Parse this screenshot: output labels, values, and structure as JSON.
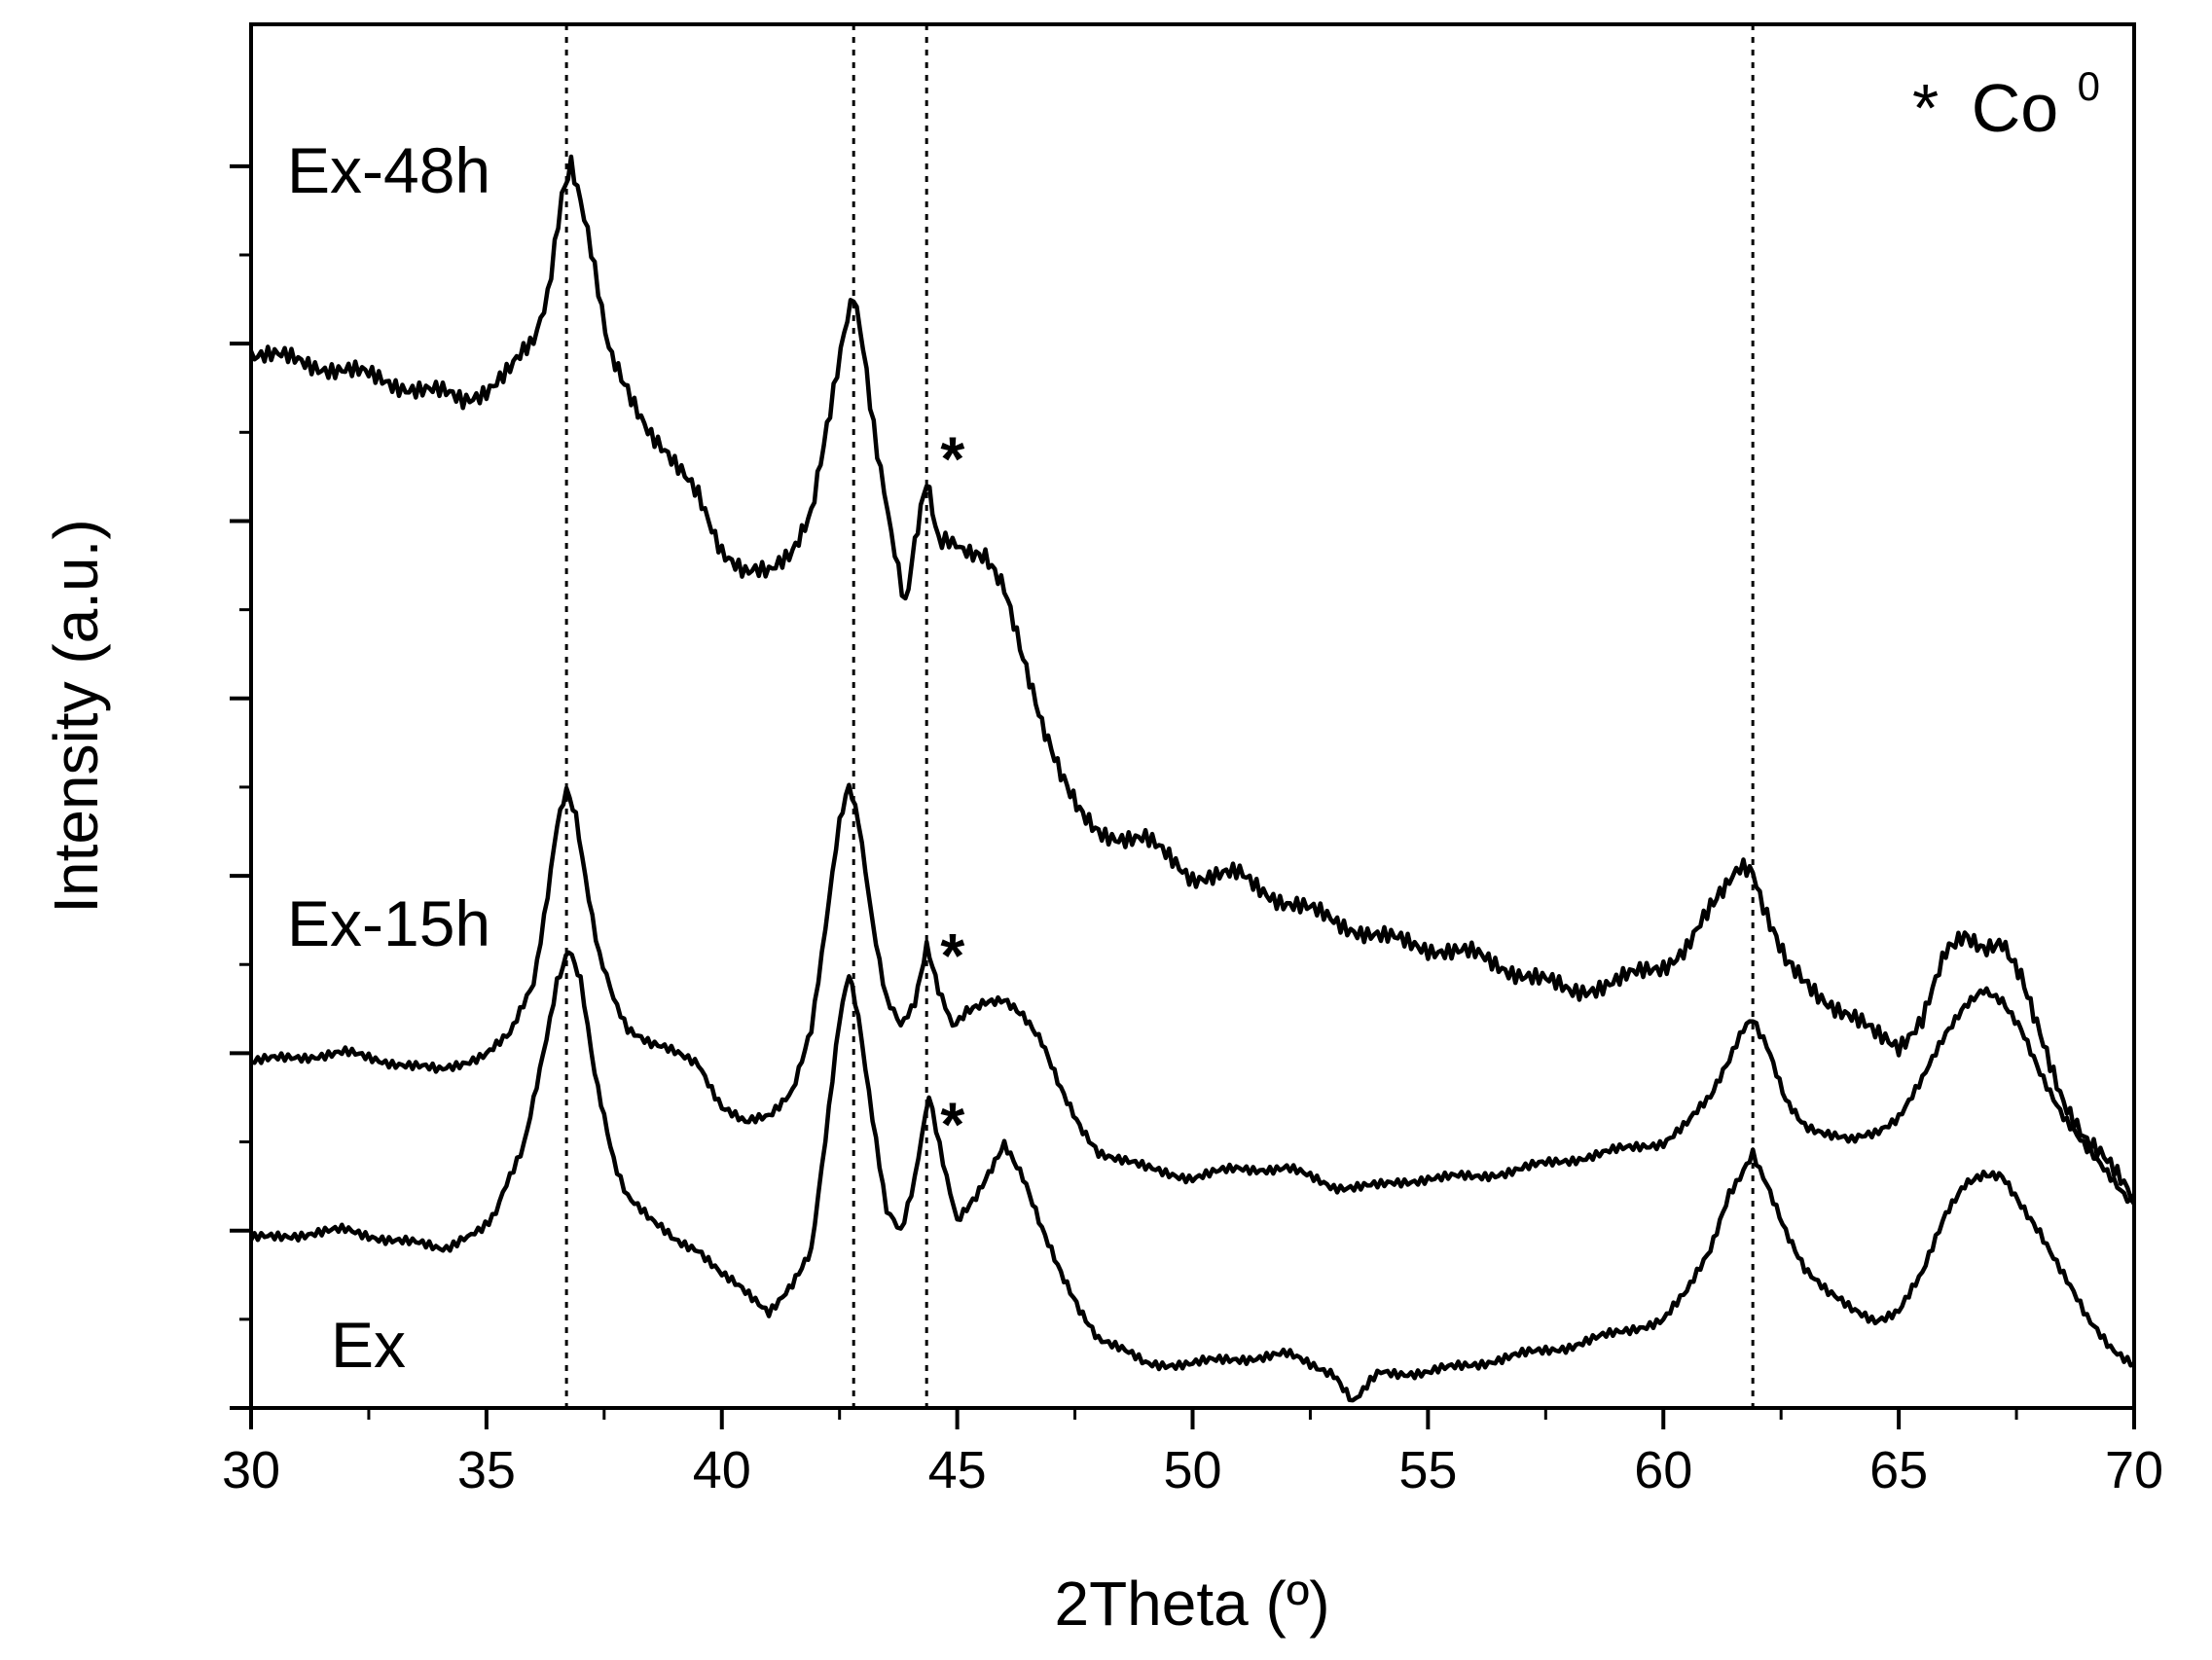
{
  "chart_data": {
    "type": "line",
    "xlabel": "2Theta (º)",
    "ylabel": "Intensity (a.u.)",
    "xlim": [
      30,
      70
    ],
    "ylim": [
      0,
      7.8
    ],
    "xticks": [
      30,
      35,
      40,
      45,
      50,
      55,
      60,
      65,
      70
    ],
    "xtick_labels": [
      "30",
      "35",
      "40",
      "45",
      "50",
      "55",
      "60",
      "65",
      "70"
    ],
    "yticks": [
      0,
      1,
      2,
      3,
      4,
      5,
      6,
      7
    ],
    "ytick_labels": [],
    "grid": false,
    "legend": {
      "symbol": "*",
      "text": "Co",
      "superscript": "0",
      "placement": "top-right"
    },
    "reference_lines": [
      36.7,
      42.8,
      44.35,
      61.9
    ],
    "series": [
      {
        "name": "Ex-48h",
        "x": [
          30,
          31,
          32,
          33,
          34,
          34.5,
          35,
          35.5,
          36,
          36.3,
          36.6,
          36.8,
          37.0,
          37.3,
          37.6,
          38,
          38.5,
          39,
          39.5,
          40,
          40.5,
          41,
          41.5,
          41.9,
          42.3,
          42.6,
          42.8,
          43.0,
          43.3,
          43.6,
          43.9,
          44.1,
          44.35,
          44.6,
          44.9,
          45.2,
          45.6,
          46.0,
          46.4,
          46.8,
          47.2,
          47.6,
          48,
          49,
          50,
          51,
          52,
          53,
          54,
          55,
          56,
          57,
          58,
          59,
          60,
          60.5,
          61,
          61.4,
          61.7,
          61.9,
          62.2,
          62.6,
          63,
          63.5,
          64,
          64.5,
          65,
          65.5,
          66,
          66.4,
          66.8,
          67.2,
          67.6,
          68,
          68.5,
          69,
          69.5,
          70
        ],
        "y": [
          5.95,
          5.9,
          5.85,
          5.78,
          5.72,
          5.68,
          5.75,
          5.85,
          6.0,
          6.3,
          6.8,
          7.0,
          6.8,
          6.4,
          6.0,
          5.75,
          5.5,
          5.3,
          5.15,
          4.85,
          4.7,
          4.7,
          4.85,
          5.05,
          5.6,
          6.1,
          6.3,
          6.0,
          5.4,
          4.9,
          4.55,
          4.9,
          5.2,
          4.9,
          4.85,
          4.85,
          4.8,
          4.6,
          4.2,
          3.85,
          3.6,
          3.4,
          3.25,
          3.2,
          3.0,
          3.0,
          2.85,
          2.75,
          2.65,
          2.6,
          2.55,
          2.45,
          2.35,
          2.4,
          2.5,
          2.6,
          2.8,
          2.95,
          3.05,
          3.0,
          2.8,
          2.55,
          2.4,
          2.3,
          2.2,
          2.1,
          2.05,
          2.2,
          2.55,
          2.65,
          2.6,
          2.65,
          2.45,
          2.1,
          1.75,
          1.5,
          1.35,
          1.2
        ]
      },
      {
        "name": "Ex-15h",
        "x": [
          30,
          31,
          32,
          33,
          34,
          35,
          35.5,
          36,
          36.3,
          36.5,
          36.7,
          36.9,
          37.1,
          37.4,
          37.7,
          38,
          38.5,
          39,
          39.5,
          40,
          40.5,
          41,
          41.5,
          41.9,
          42.2,
          42.5,
          42.7,
          42.9,
          43.2,
          43.5,
          43.8,
          44.1,
          44.35,
          44.6,
          44.9,
          45.2,
          45.6,
          46.0,
          46.4,
          46.8,
          47.2,
          47.6,
          48,
          49,
          50,
          51,
          52,
          53,
          54,
          55,
          56,
          57,
          58,
          59,
          60,
          60.5,
          61,
          61.4,
          61.7,
          61.9,
          62.2,
          62.6,
          63,
          63.5,
          64,
          64.5,
          65,
          65.5,
          66,
          66.4,
          66.8,
          67.2,
          67.6,
          68,
          68.5,
          69,
          69.5,
          70
        ],
        "y": [
          1.95,
          1.98,
          2.0,
          1.95,
          1.9,
          2.0,
          2.1,
          2.4,
          2.9,
          3.3,
          3.5,
          3.35,
          3.0,
          2.55,
          2.3,
          2.15,
          2.05,
          2.0,
          1.95,
          1.7,
          1.6,
          1.65,
          1.8,
          2.15,
          2.7,
          3.3,
          3.5,
          3.3,
          2.75,
          2.3,
          2.15,
          2.3,
          2.6,
          2.35,
          2.15,
          2.25,
          2.3,
          2.3,
          2.2,
          2.05,
          1.8,
          1.6,
          1.45,
          1.35,
          1.3,
          1.35,
          1.35,
          1.25,
          1.25,
          1.3,
          1.3,
          1.35,
          1.4,
          1.45,
          1.5,
          1.6,
          1.75,
          1.95,
          2.15,
          2.2,
          2.05,
          1.75,
          1.6,
          1.55,
          1.5,
          1.55,
          1.65,
          1.85,
          2.1,
          2.25,
          2.35,
          2.3,
          2.15,
          1.9,
          1.65,
          1.45,
          1.3,
          1.15
        ]
      },
      {
        "name": "Ex",
        "x": [
          30,
          31,
          32,
          33,
          34,
          34.6,
          35.2,
          35.8,
          36.2,
          36.5,
          36.75,
          37.0,
          37.3,
          37.7,
          38,
          38.5,
          39,
          39.5,
          40,
          40.5,
          41,
          41.5,
          41.9,
          42.2,
          42.5,
          42.7,
          42.9,
          43.2,
          43.5,
          43.8,
          44.1,
          44.4,
          44.7,
          45.0,
          45.4,
          45.8,
          46.0,
          46.4,
          46.8,
          47.2,
          47.6,
          48,
          49,
          50,
          51,
          52,
          53,
          53.4,
          54,
          55,
          56,
          57,
          58,
          59,
          60,
          60.5,
          61,
          61.4,
          61.7,
          61.9,
          62.2,
          62.6,
          63,
          63.5,
          64,
          64.5,
          65,
          65.5,
          66,
          66.4,
          66.8,
          67.2,
          67.6,
          68,
          68.5,
          69,
          69.5,
          70
        ],
        "y": [
          0.95,
          0.98,
          1.0,
          0.95,
          0.9,
          0.95,
          1.1,
          1.5,
          2.0,
          2.4,
          2.6,
          2.4,
          1.9,
          1.4,
          1.2,
          1.05,
          0.95,
          0.9,
          0.75,
          0.65,
          0.55,
          0.7,
          0.9,
          1.5,
          2.2,
          2.45,
          2.2,
          1.65,
          1.1,
          1.0,
          1.3,
          1.75,
          1.4,
          1.05,
          1.2,
          1.4,
          1.5,
          1.3,
          1.0,
          0.75,
          0.55,
          0.4,
          0.25,
          0.25,
          0.28,
          0.3,
          0.2,
          0.05,
          0.2,
          0.2,
          0.25,
          0.3,
          0.35,
          0.42,
          0.5,
          0.65,
          0.9,
          1.2,
          1.35,
          1.45,
          1.25,
          1.0,
          0.8,
          0.65,
          0.55,
          0.5,
          0.55,
          0.75,
          1.1,
          1.25,
          1.3,
          1.3,
          1.15,
          1.0,
          0.75,
          0.5,
          0.35,
          0.25
        ]
      }
    ],
    "series_labels": [
      {
        "text": "Ex-48h"
      },
      {
        "text": "Ex-15h"
      },
      {
        "text": "Ex"
      }
    ],
    "markers": [
      {
        "symbol": "*",
        "x": 44.9,
        "y": 5.35
      },
      {
        "symbol": "*",
        "x": 44.9,
        "y": 2.55
      },
      {
        "symbol": "*",
        "x": 44.9,
        "y": 1.6
      }
    ]
  }
}
